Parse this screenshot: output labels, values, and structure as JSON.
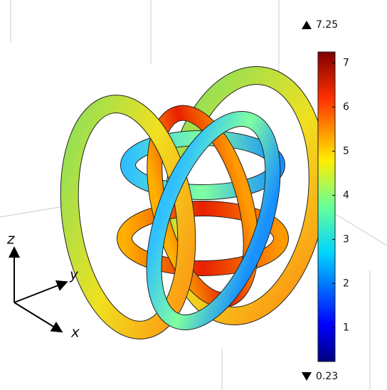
{
  "colorbar": {
    "max": 7.25,
    "min": 0.23,
    "ticks": [
      1,
      2,
      3,
      4,
      5,
      6,
      7
    ]
  },
  "axes": {
    "z": "z",
    "y": "y",
    "x": "x"
  }
}
